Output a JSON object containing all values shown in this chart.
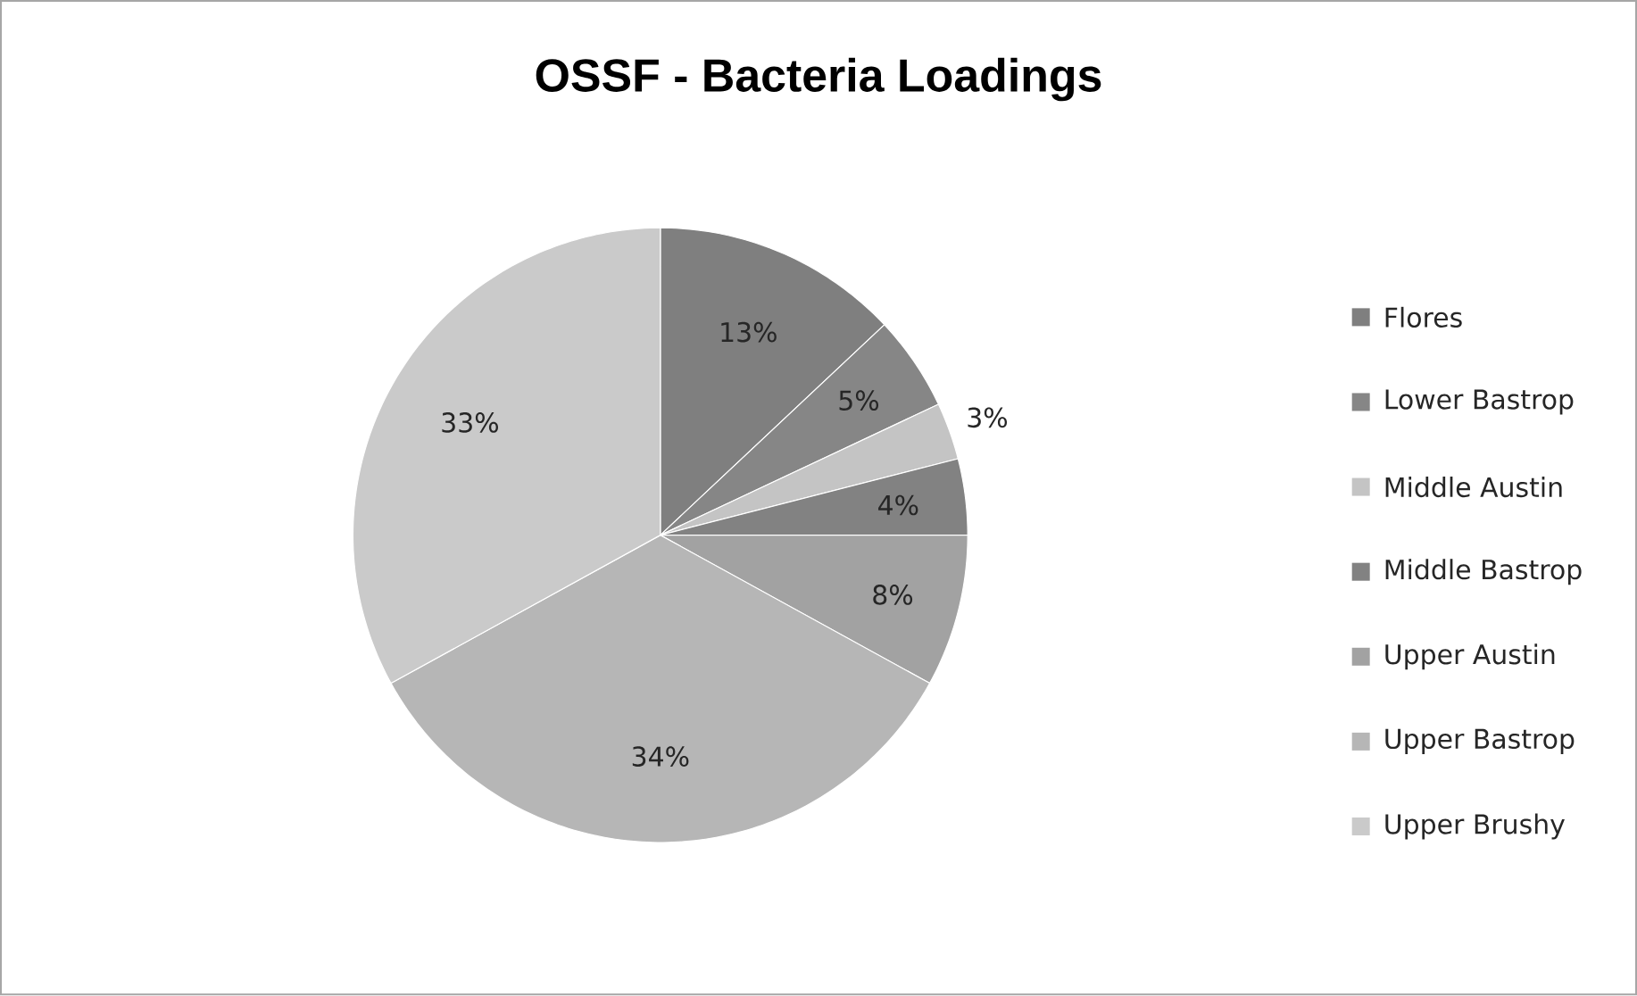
{
  "chart_data": {
    "type": "pie",
    "title": "OSSF - Bacteria Loadings",
    "categories": [
      "Flores",
      "Lower Bastrop",
      "Middle Austin",
      "Middle Bastrop",
      "Upper Austin",
      "Upper Bastrop",
      "Upper Brushy"
    ],
    "values": [
      13,
      5,
      3,
      4,
      8,
      34,
      33
    ],
    "value_labels": [
      "13%",
      "5%",
      "3%",
      "4%",
      "8%",
      "34%",
      "33%"
    ],
    "colors": [
      "#7f7f7f",
      "#868686",
      "#c4c4c4",
      "#828282",
      "#a2a2a2",
      "#b6b6b6",
      "#cacaca"
    ],
    "legend": "right"
  }
}
